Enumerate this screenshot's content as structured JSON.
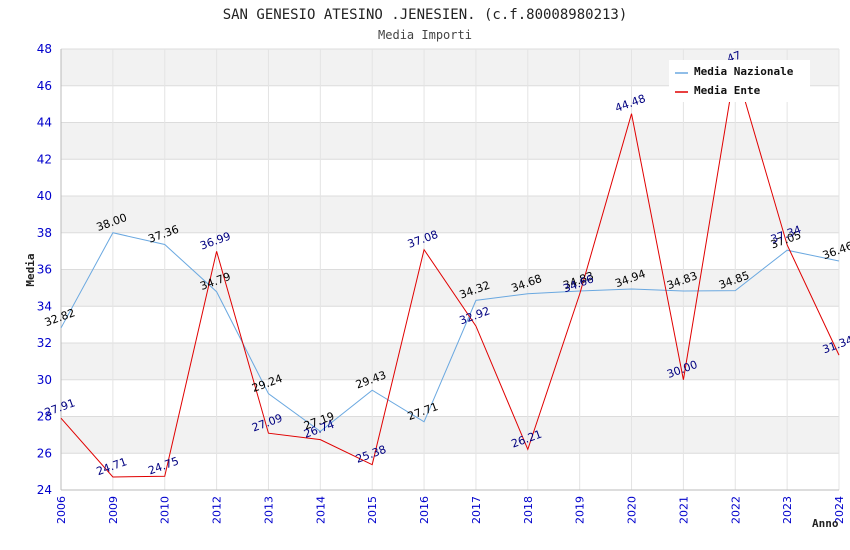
{
  "chart_data": {
    "type": "line",
    "title": "SAN GENESIO ATESINO .JENESIEN. (c.f.80008980213)",
    "subtitle": "Media Importi",
    "xlabel": "Anno",
    "ylabel": "Media",
    "ylim": [
      24,
      48
    ],
    "yticks": [
      "24",
      "26",
      "28",
      "30",
      "32",
      "34",
      "36",
      "38",
      "40",
      "42",
      "44",
      "46",
      "48"
    ],
    "categories": [
      "2006",
      "2009",
      "2010",
      "2012",
      "2013",
      "2014",
      "2015",
      "2016",
      "2017",
      "2018",
      "2019",
      "2020",
      "2021",
      "2022",
      "2023",
      "2024"
    ],
    "legend_position": "top-right",
    "series": [
      {
        "name": "Media Nazionale",
        "color": "#6aa8e0",
        "label_color": "#000000",
        "values": [
          32.82,
          38.0,
          37.36,
          34.79,
          29.24,
          27.19,
          29.43,
          27.71,
          34.32,
          34.68,
          34.83,
          34.94,
          34.83,
          34.85,
          37.05,
          36.46
        ],
        "labels": [
          "32.82",
          "38.00",
          "37.36",
          "34.79",
          "29.24",
          "27.19",
          "29.43",
          "27.71",
          "34.32",
          "34.68",
          "34.83",
          "34.94",
          "34.83",
          "34.85",
          "37.05",
          "36.46"
        ]
      },
      {
        "name": "Media Ente",
        "color": "#e00000",
        "label_color": "#000080",
        "values": [
          27.91,
          24.71,
          24.75,
          36.99,
          27.09,
          26.74,
          25.38,
          37.08,
          32.92,
          26.21,
          34.66,
          44.48,
          30.0,
          47.0,
          37.34,
          31.34
        ],
        "labels": [
          "27.91",
          "24.71",
          "24.75",
          "36.99",
          "27.09",
          "26.74",
          "25.38",
          "37.08",
          "32.92",
          "26.21",
          "34.66",
          "44.48",
          "30.00",
          "47",
          "37.34",
          "31.34"
        ]
      }
    ]
  }
}
